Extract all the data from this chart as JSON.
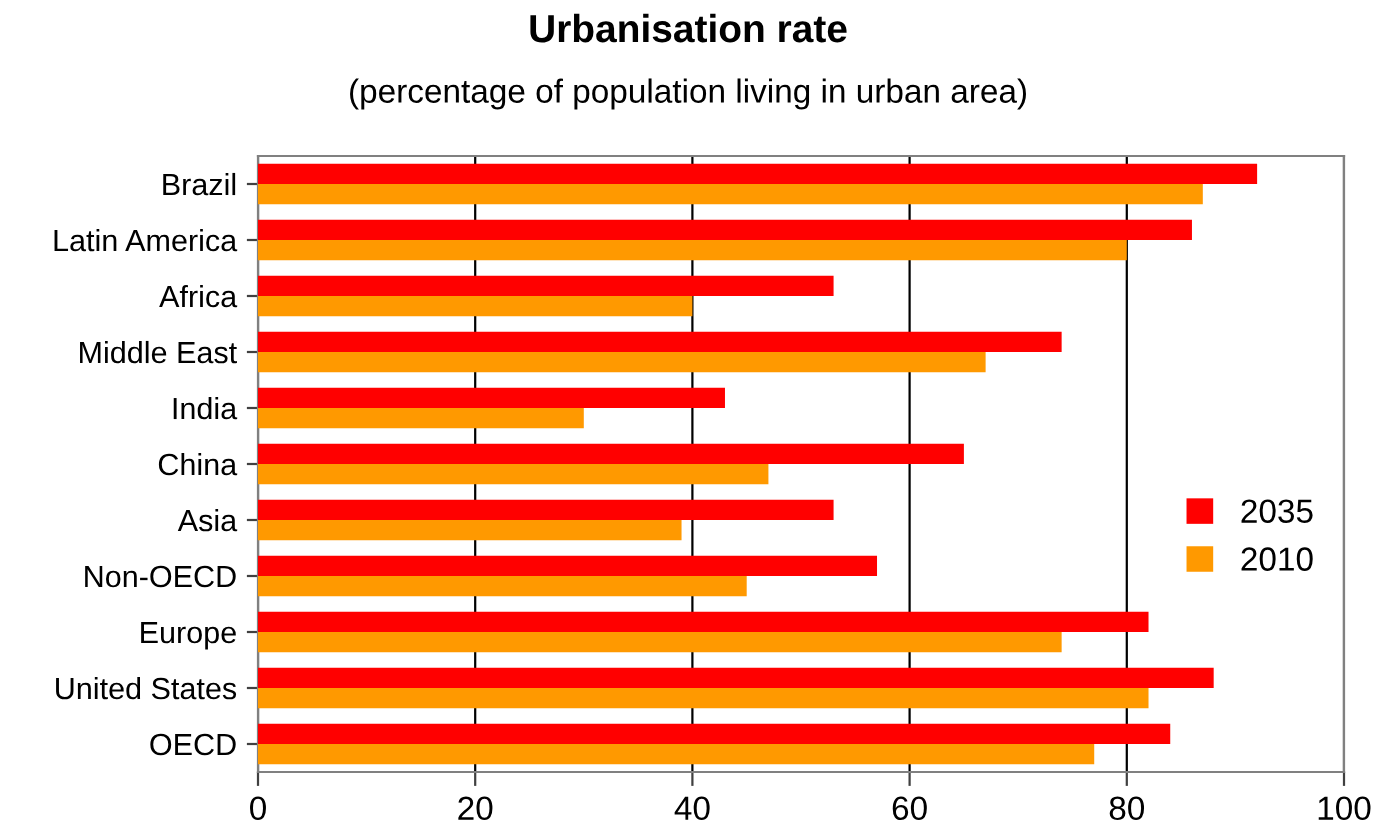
{
  "chart_data": {
    "type": "bar",
    "orientation": "horizontal",
    "title": "Urbanisation rate",
    "subtitle": "(percentage of population living in urban area)",
    "categories": [
      "Brazil",
      "Latin America",
      "Africa",
      "Middle East",
      "India",
      "China",
      "Asia",
      "Non-OECD",
      "Europe",
      "United States",
      "OECD"
    ],
    "series": [
      {
        "name": "2035",
        "color": "#ff0000",
        "values": [
          92,
          86,
          53,
          74,
          43,
          65,
          53,
          57,
          82,
          88,
          84
        ]
      },
      {
        "name": "2010",
        "color": "#ff9900",
        "values": [
          87,
          80,
          40,
          67,
          30,
          47,
          39,
          45,
          74,
          82,
          77
        ]
      }
    ],
    "xlim": [
      0,
      100
    ],
    "xticks": [
      0,
      20,
      40,
      60,
      80,
      100
    ],
    "grid": "x",
    "legend": "right"
  }
}
